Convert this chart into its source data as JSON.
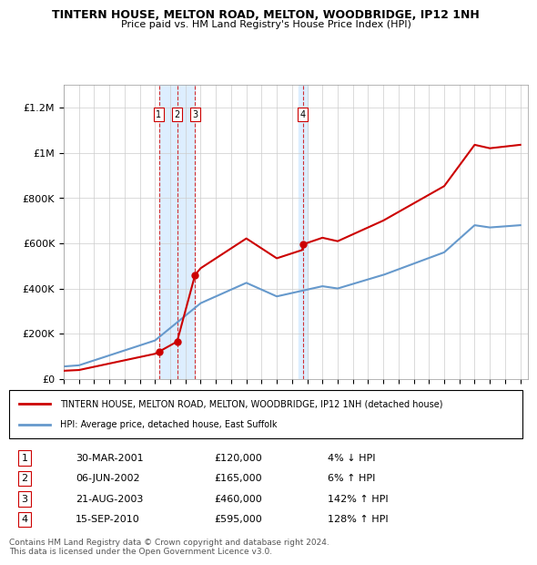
{
  "title": "TINTERN HOUSE, MELTON ROAD, MELTON, WOODBRIDGE, IP12 1NH",
  "subtitle": "Price paid vs. HM Land Registry's House Price Index (HPI)",
  "ylabel_ticks": [
    "£0",
    "£200K",
    "£400K",
    "£600K",
    "£800K",
    "£1M",
    "£1.2M"
  ],
  "ytick_values": [
    0,
    200000,
    400000,
    600000,
    800000,
    1000000,
    1200000
  ],
  "ylim": [
    0,
    1300000
  ],
  "x_start_year": 1995,
  "x_end_year": 2025,
  "legend_line1": "TINTERN HOUSE, MELTON ROAD, MELTON, WOODBRIDGE, IP12 1NH (detached house)",
  "legend_line2": "HPI: Average price, detached house, East Suffolk",
  "transactions": [
    {
      "num": 1,
      "date": "30-MAR-2001",
      "price": 120000,
      "pct": "4%",
      "dir": "↓",
      "year": 2001.25
    },
    {
      "num": 2,
      "date": "06-JUN-2002",
      "price": 165000,
      "pct": "6%",
      "dir": "↑",
      "year": 2002.45
    },
    {
      "num": 3,
      "date": "21-AUG-2003",
      "price": 460000,
      "pct": "142%",
      "dir": "↑",
      "year": 2003.63
    },
    {
      "num": 4,
      "date": "15-SEP-2010",
      "price": 595000,
      "pct": "128%",
      "dir": "↑",
      "year": 2010.71
    }
  ],
  "footer": "Contains HM Land Registry data © Crown copyright and database right 2024.\nThis data is licensed under the Open Government Licence v3.0.",
  "property_color": "#cc0000",
  "hpi_color": "#6699cc",
  "transaction_marker_color": "#cc0000",
  "shaded_region_color": "#ddeeff",
  "grid_color": "#cccccc",
  "background_color": "#ffffff"
}
